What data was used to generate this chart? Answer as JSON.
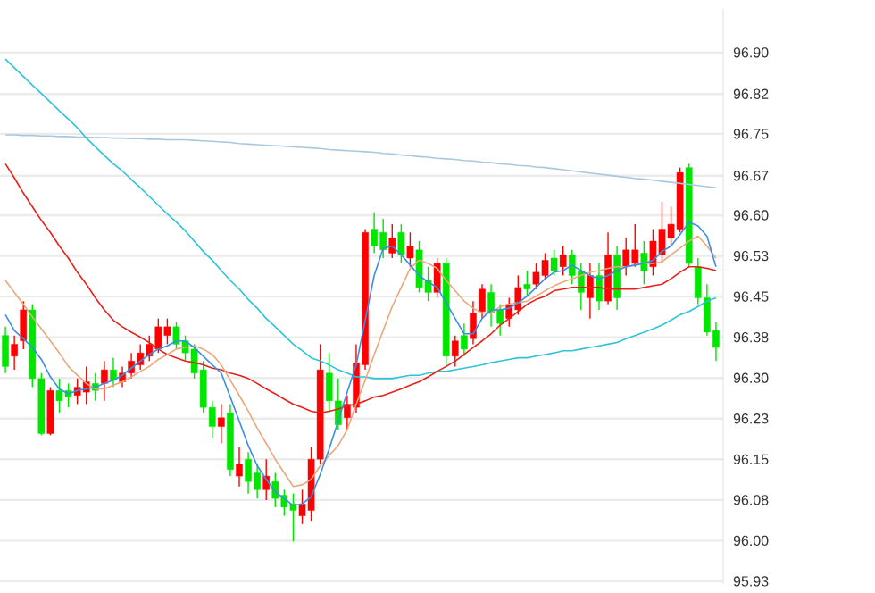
{
  "chart_data": {
    "type": "candlestick",
    "categories": [
      null,
      null,
      null,
      null,
      null,
      null,
      null,
      null,
      null,
      null,
      null,
      null,
      null,
      null,
      null,
      null,
      null,
      null,
      null,
      null,
      null,
      null,
      null,
      null,
      null,
      null,
      null,
      null,
      null,
      null,
      null,
      null,
      null,
      null,
      null,
      null,
      null,
      null,
      null,
      null,
      null,
      null,
      null,
      null,
      null,
      null,
      null,
      null,
      null,
      null,
      null,
      null,
      null,
      null,
      null,
      null,
      null,
      null,
      null,
      null,
      null,
      null,
      null,
      null,
      null,
      null,
      null,
      null,
      null,
      null,
      null,
      null,
      null,
      null,
      null,
      null,
      null,
      null,
      null,
      null
    ],
    "ohlc": [
      [
        96.381,
        96.397,
        96.312,
        96.324
      ],
      [
        96.343,
        96.381,
        96.318,
        96.365
      ],
      [
        96.371,
        96.444,
        96.356,
        96.428
      ],
      [
        96.428,
        96.438,
        96.286,
        96.302
      ],
      [
        96.302,
        96.312,
        96.198,
        96.201
      ],
      [
        96.201,
        96.286,
        96.198,
        96.28
      ],
      [
        96.28,
        96.302,
        96.239,
        96.261
      ],
      [
        96.28,
        96.293,
        96.249,
        96.268
      ],
      [
        96.271,
        96.302,
        96.255,
        96.286
      ],
      [
        96.277,
        96.324,
        96.255,
        96.296
      ],
      [
        96.293,
        96.312,
        96.261,
        96.28
      ],
      [
        96.293,
        96.334,
        96.261,
        96.318
      ],
      [
        96.318,
        96.34,
        96.286,
        96.299
      ],
      [
        96.296,
        96.324,
        96.286,
        96.312
      ],
      [
        96.312,
        96.349,
        96.302,
        96.334
      ],
      [
        96.327,
        96.365,
        96.318,
        96.349
      ],
      [
        96.343,
        96.381,
        96.334,
        96.365
      ],
      [
        96.356,
        96.412,
        96.349,
        96.397
      ],
      [
        96.381,
        96.412,
        96.365,
        96.397
      ],
      [
        96.397,
        96.406,
        96.356,
        96.365
      ],
      [
        96.371,
        96.381,
        96.334,
        96.349
      ],
      [
        96.356,
        96.365,
        96.302,
        96.312
      ],
      [
        96.318,
        96.334,
        96.239,
        96.249
      ],
      [
        96.249,
        96.261,
        96.192,
        96.214
      ],
      [
        96.214,
        96.255,
        96.183,
        96.23
      ],
      [
        96.239,
        96.255,
        96.123,
        96.135
      ],
      [
        96.123,
        96.176,
        96.104,
        96.145
      ],
      [
        96.154,
        96.167,
        96.091,
        96.113
      ],
      [
        96.129,
        96.145,
        96.082,
        96.098
      ],
      [
        96.098,
        96.154,
        96.079,
        96.123
      ],
      [
        96.113,
        96.129,
        96.066,
        96.082
      ],
      [
        96.088,
        96.098,
        96.05,
        96.066
      ],
      [
        96.072,
        96.091,
        96.003,
        96.06
      ],
      [
        96.05,
        96.098,
        96.035,
        96.072
      ],
      [
        96.06,
        96.176,
        96.041,
        96.154
      ],
      [
        96.154,
        96.365,
        96.145,
        96.318
      ],
      [
        96.312,
        96.349,
        96.239,
        96.261
      ],
      [
        96.261,
        96.302,
        96.208,
        96.217
      ],
      [
        96.23,
        96.271,
        96.208,
        96.255
      ],
      [
        96.249,
        96.365,
        96.239,
        96.331
      ],
      [
        96.327,
        96.576,
        96.318,
        96.57
      ],
      [
        96.576,
        96.607,
        96.532,
        96.545
      ],
      [
        96.57,
        96.595,
        96.523,
        96.538
      ],
      [
        96.532,
        96.585,
        96.523,
        96.56
      ],
      [
        96.57,
        96.585,
        96.513,
        96.529
      ],
      [
        96.523,
        96.57,
        96.507,
        96.545
      ],
      [
        96.538,
        96.554,
        96.46,
        96.469
      ],
      [
        96.482,
        96.507,
        96.444,
        96.46
      ],
      [
        96.46,
        96.523,
        96.45,
        96.513
      ],
      [
        96.513,
        96.523,
        96.324,
        96.343
      ],
      [
        96.343,
        96.381,
        96.324,
        96.371
      ],
      [
        96.381,
        96.403,
        96.343,
        96.356
      ],
      [
        96.375,
        96.444,
        96.365,
        96.422
      ],
      [
        96.425,
        96.475,
        96.412,
        96.466
      ],
      [
        96.46,
        96.475,
        96.397,
        96.422
      ],
      [
        96.428,
        96.438,
        96.381,
        96.403
      ],
      [
        96.412,
        96.45,
        96.397,
        96.438
      ],
      [
        96.428,
        96.491,
        96.419,
        96.469
      ],
      [
        96.475,
        96.5,
        96.453,
        96.466
      ],
      [
        96.475,
        96.513,
        96.466,
        96.497
      ],
      [
        96.491,
        96.532,
        96.482,
        96.519
      ],
      [
        96.523,
        96.538,
        96.491,
        96.5
      ],
      [
        96.507,
        96.545,
        96.491,
        96.529
      ],
      [
        96.529,
        96.538,
        96.475,
        96.491
      ],
      [
        96.5,
        96.513,
        96.428,
        96.46
      ],
      [
        96.45,
        96.513,
        96.412,
        96.491
      ],
      [
        96.491,
        96.513,
        96.428,
        96.444
      ],
      [
        96.444,
        96.57,
        96.438,
        96.529
      ],
      [
        96.529,
        96.545,
        96.428,
        96.45
      ],
      [
        96.507,
        96.56,
        96.491,
        96.538
      ],
      [
        96.513,
        96.585,
        96.507,
        96.538
      ],
      [
        96.532,
        96.554,
        96.475,
        96.5
      ],
      [
        96.507,
        96.576,
        96.491,
        96.554
      ],
      [
        96.529,
        96.626,
        96.513,
        96.576
      ],
      [
        96.56,
        96.617,
        96.545,
        96.585
      ],
      [
        96.576,
        96.689,
        96.57,
        96.68
      ],
      [
        96.689,
        96.696,
        96.507,
        96.513
      ],
      [
        96.507,
        96.523,
        96.438,
        96.45
      ],
      [
        96.45,
        96.475,
        96.381,
        96.387
      ],
      [
        96.39,
        96.406,
        96.334,
        96.359
      ]
    ],
    "colors": [
      "#00e600",
      "#ff0000",
      "#ff0000",
      "#00e600",
      "#00e600",
      "#ff0000",
      "#00e600",
      "#00e600",
      "#ff0000",
      "#ff0000",
      "#00e600",
      "#ff0000",
      "#00e600",
      "#ff0000",
      "#ff0000",
      "#ff0000",
      "#ff0000",
      "#ff0000",
      "#ff0000",
      "#00e600",
      "#00e600",
      "#00e600",
      "#00e600",
      "#00e600",
      "#ff0000",
      "#00e600",
      "#ff0000",
      "#00e600",
      "#00e600",
      "#ff0000",
      "#00e600",
      "#00e600",
      "#00e600",
      "#ff0000",
      "#ff0000",
      "#ff0000",
      "#00e600",
      "#00e600",
      "#ff0000",
      "#ff0000",
      "#ff0000",
      "#00e600",
      "#00e600",
      "#ff0000",
      "#00e600",
      "#ff0000",
      "#00e600",
      "#00e600",
      "#ff0000",
      "#00e600",
      "#ff0000",
      "#00e600",
      "#ff0000",
      "#ff0000",
      "#00e600",
      "#00e600",
      "#ff0000",
      "#ff0000",
      "#00e600",
      "#ff0000",
      "#ff0000",
      "#00e600",
      "#ff0000",
      "#00e600",
      "#00e600",
      "#ff0000",
      "#00e600",
      "#ff0000",
      "#00e600",
      "#ff0000",
      "#ff0000",
      "#00e600",
      "#ff0000",
      "#ff0000",
      "#ff0000",
      "#ff0000",
      "#00e600",
      "#00e600",
      "#00e600",
      "#00e600"
    ],
    "series": [
      {
        "type": "line",
        "color": "#a8c8e0",
        "values": [
          96.749,
          96.749,
          96.748,
          96.748,
          96.747,
          96.747,
          96.746,
          96.746,
          96.745,
          96.745,
          96.744,
          96.744,
          96.743,
          96.743,
          96.742,
          96.742,
          96.741,
          96.741,
          96.74,
          96.74,
          96.74,
          96.739,
          96.738,
          96.737,
          96.736,
          96.735,
          96.733,
          96.732,
          96.731,
          96.73,
          96.729,
          96.728,
          96.727,
          96.726,
          96.725,
          96.724,
          96.722,
          96.721,
          96.72,
          96.719,
          96.718,
          96.717,
          96.715,
          96.714,
          96.712,
          96.711,
          96.709,
          96.708,
          96.706,
          96.705,
          96.704,
          96.702,
          96.701,
          96.699,
          96.698,
          96.696,
          96.695,
          96.693,
          96.692,
          96.69,
          96.689,
          96.687,
          96.685,
          96.683,
          96.681,
          96.679,
          96.677,
          96.675,
          96.673,
          96.671,
          96.669,
          96.668,
          96.666,
          96.664,
          96.662,
          96.66,
          96.658,
          96.656,
          96.654,
          96.652
        ]
      },
      {
        "type": "line",
        "color": "#2cc4d8",
        "values": [
          96.888,
          96.872,
          96.856,
          96.84,
          96.825,
          96.809,
          96.793,
          96.778,
          96.762,
          96.743,
          96.727,
          96.711,
          96.696,
          96.683,
          96.667,
          96.652,
          96.636,
          96.62,
          96.604,
          96.589,
          96.573,
          96.554,
          96.535,
          96.519,
          96.5,
          96.482,
          96.466,
          96.447,
          96.431,
          96.412,
          96.397,
          96.381,
          96.365,
          96.353,
          96.34,
          96.334,
          96.327,
          96.318,
          96.312,
          96.305,
          96.305,
          96.302,
          96.302,
          96.302,
          96.305,
          96.308,
          96.308,
          96.312,
          96.315,
          96.315,
          96.318,
          96.321,
          96.324,
          96.327,
          96.331,
          96.334,
          96.337,
          96.34,
          96.34,
          96.343,
          96.346,
          96.349,
          96.353,
          96.353,
          96.356,
          96.359,
          96.362,
          96.365,
          96.368,
          96.375,
          96.381,
          96.387,
          96.393,
          96.4,
          96.409,
          96.419,
          96.425,
          96.434,
          96.444,
          96.45
        ]
      },
      {
        "type": "line",
        "color": "#e8201a",
        "values": [
          96.696,
          96.67,
          96.642,
          96.617,
          96.592,
          96.57,
          96.545,
          96.523,
          96.497,
          96.475,
          96.45,
          96.428,
          96.409,
          96.397,
          96.387,
          96.378,
          96.368,
          96.356,
          96.346,
          96.34,
          96.334,
          96.331,
          96.327,
          96.321,
          96.318,
          96.312,
          96.308,
          96.302,
          96.293,
          96.283,
          96.274,
          96.264,
          96.255,
          96.249,
          96.242,
          96.239,
          96.242,
          96.246,
          96.252,
          96.255,
          96.261,
          96.268,
          96.271,
          96.277,
          96.283,
          96.29,
          96.296,
          96.305,
          96.315,
          96.324,
          96.334,
          96.346,
          96.359,
          96.371,
          96.384,
          96.4,
          96.412,
          96.425,
          96.438,
          96.447,
          96.453,
          96.463,
          96.466,
          96.469,
          96.469,
          96.469,
          96.469,
          96.466,
          96.466,
          96.466,
          96.466,
          96.469,
          96.472,
          96.475,
          96.485,
          96.497,
          96.507,
          96.507,
          96.504,
          96.5
        ]
      },
      {
        "type": "line",
        "color": "#e8a87c",
        "values": [
          96.482,
          96.46,
          96.438,
          96.415,
          96.393,
          96.371,
          96.349,
          96.324,
          96.308,
          96.293,
          96.283,
          96.283,
          96.29,
          96.296,
          96.305,
          96.315,
          96.324,
          96.337,
          96.346,
          96.356,
          96.359,
          96.362,
          96.356,
          96.346,
          96.327,
          96.299,
          96.271,
          96.242,
          96.211,
          96.183,
          96.154,
          96.129,
          96.104,
          96.107,
          96.117,
          96.142,
          96.161,
          96.179,
          96.208,
          96.255,
          96.299,
          96.346,
          96.39,
          96.434,
          96.469,
          96.504,
          96.519,
          96.513,
          96.504,
          96.482,
          96.463,
          96.444,
          96.431,
          96.422,
          96.422,
          96.434,
          96.438,
          96.441,
          96.444,
          96.453,
          96.463,
          96.472,
          96.479,
          96.485,
          96.491,
          96.497,
          96.5,
          96.504,
          96.507,
          96.507,
          96.51,
          96.513,
          96.513,
          96.516,
          96.529,
          96.541,
          96.554,
          96.563,
          96.545,
          96.523
        ]
      },
      {
        "type": "line",
        "color": "#3a8ee6",
        "values": [
          96.419,
          96.39,
          96.375,
          96.359,
          96.337,
          96.305,
          96.283,
          96.274,
          96.28,
          96.283,
          96.286,
          96.293,
          96.299,
          96.308,
          96.321,
          96.334,
          96.346,
          96.356,
          96.362,
          96.371,
          96.371,
          96.359,
          96.343,
          96.327,
          96.312,
          96.268,
          96.224,
          96.179,
          96.142,
          96.117,
          96.094,
          96.082,
          96.069,
          96.072,
          96.085,
          96.126,
          96.173,
          96.224,
          96.277,
          96.327,
          96.409,
          96.491,
          96.541,
          96.545,
          96.529,
          96.51,
          96.491,
          96.479,
          96.469,
          96.441,
          96.412,
          96.384,
          96.384,
          96.412,
          96.428,
          96.428,
          96.431,
          96.441,
          96.453,
          96.469,
          96.485,
          96.497,
          96.5,
          96.51,
          96.5,
          96.491,
          96.485,
          96.491,
          96.5,
          96.507,
          96.51,
          96.513,
          96.519,
          96.535,
          96.545,
          96.566,
          96.589,
          96.582,
          96.563,
          96.507
        ]
      }
    ],
    "ylim": [
      95.925,
      96.98
    ],
    "yticks": [
      {
        "value": 96.9,
        "label": "96.90"
      },
      {
        "value": 96.824,
        "label": "96.82"
      },
      {
        "value": 96.7508,
        "label": "96.75"
      },
      {
        "value": 96.674,
        "label": "96.67"
      },
      {
        "value": 96.6015,
        "label": "96.60"
      },
      {
        "value": 96.5269,
        "label": "96.53"
      },
      {
        "value": 96.4523,
        "label": "96.45"
      },
      {
        "value": 96.3777,
        "label": "96.38"
      },
      {
        "value": 96.3031,
        "label": "96.30"
      },
      {
        "value": 96.2285,
        "label": "96.23"
      },
      {
        "value": 96.1538,
        "label": "96.15"
      },
      {
        "value": 96.0792,
        "label": "96.08"
      },
      {
        "value": 96.0046,
        "label": "96.00"
      },
      {
        "value": 95.93,
        "label": "95.93"
      }
    ],
    "grid": "y",
    "tick_labels": "y"
  }
}
